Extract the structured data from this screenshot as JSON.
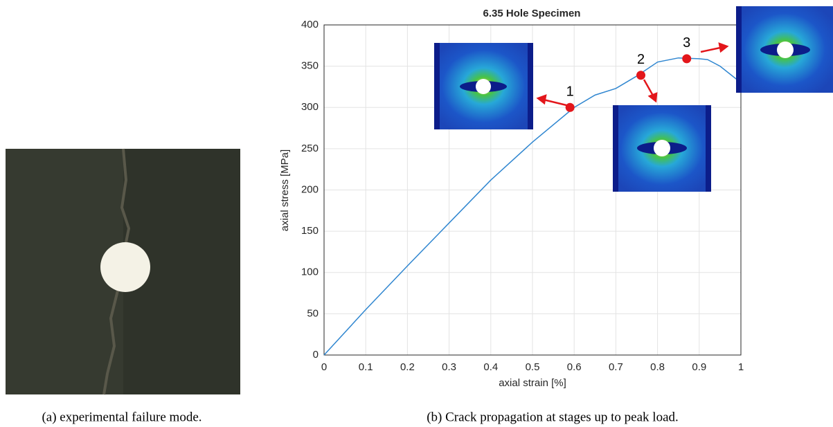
{
  "chart_data": {
    "type": "line",
    "title": "6.35 Hole Specimen",
    "x_label": "axial strain [%]",
    "y_label": "axial stress [MPa]",
    "x": [
      0,
      0.1,
      0.2,
      0.3,
      0.4,
      0.5,
      0.6,
      0.65,
      0.7,
      0.75,
      0.8,
      0.85,
      0.9,
      0.92,
      0.95,
      1.0
    ],
    "series": [
      {
        "name": "6.35 Hole Specimen",
        "color": "#2f86d0",
        "values": [
          0,
          55,
          108,
          160,
          212,
          258,
          300,
          315,
          323,
          338,
          355,
          360,
          359,
          358,
          350,
          330
        ]
      }
    ],
    "annotations": [
      {
        "label": "1",
        "x": 0.59,
        "y": 300
      },
      {
        "label": "2",
        "x": 0.76,
        "y": 339
      },
      {
        "label": "3",
        "x": 0.87,
        "y": 359
      }
    ],
    "annotation_color": "#e3161b",
    "xlim": [
      0,
      1
    ],
    "ylim": [
      0,
      400
    ],
    "xticks": [
      0,
      0.1,
      0.2,
      0.3,
      0.4,
      0.5,
      0.6,
      0.7,
      0.8,
      0.9,
      1
    ],
    "yticks": [
      0,
      50,
      100,
      150,
      200,
      250,
      300,
      350,
      400
    ],
    "grid": true
  },
  "captions": [
    "(a) experimental failure mode.",
    "(b) Crack propagation at stages up to peak load."
  ]
}
